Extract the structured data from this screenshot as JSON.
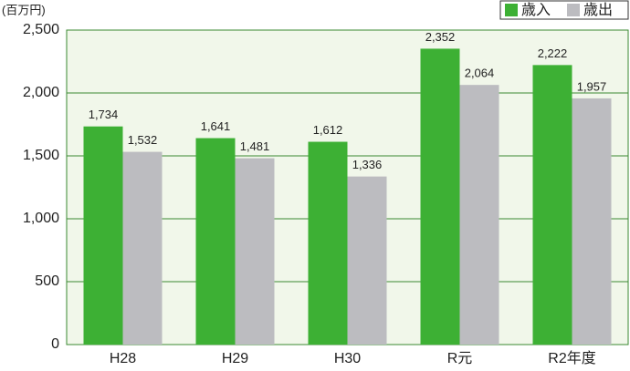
{
  "chart_data": {
    "type": "bar",
    "unit_label": "(百万円)",
    "categories": [
      "H28",
      "H29",
      "H30",
      "R元",
      "R2年度"
    ],
    "series": [
      {
        "name": "歳入",
        "color": "#3db034",
        "values": [
          1734,
          1641,
          1612,
          2352,
          2222
        ],
        "value_labels": [
          "1,734",
          "1,641",
          "1,612",
          "2,352",
          "2,222"
        ]
      },
      {
        "name": "歳出",
        "color": "#bcbcc0",
        "values": [
          1532,
          1481,
          1336,
          2064,
          1957
        ],
        "value_labels": [
          "1,532",
          "1,481",
          "1,336",
          "2,064",
          "1,957"
        ]
      }
    ],
    "ylim": [
      0,
      2500
    ],
    "yticks": [
      0,
      500,
      {
        "value": 1000,
        "label": "1,000"
      },
      {
        "value": 1500,
        "label": "1,500"
      },
      {
        "value": 2000,
        "label": "2,000"
      },
      {
        "value": 2500,
        "label": "2,500"
      }
    ],
    "grid": true,
    "legend": "top-right"
  }
}
